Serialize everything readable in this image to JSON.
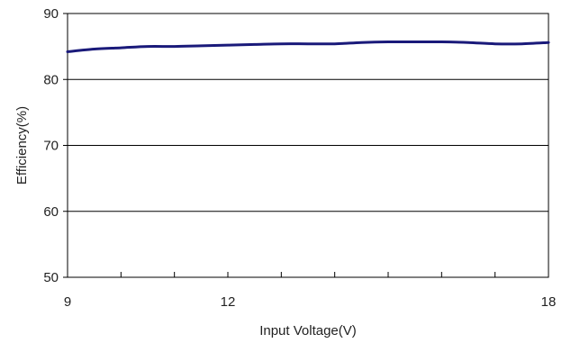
{
  "chart_data": {
    "type": "line",
    "xlabel": "Input Voltage(V)",
    "ylabel": "Efficiency(%)",
    "xlim": [
      9,
      18
    ],
    "ylim": [
      50,
      90
    ],
    "x_ticks": [
      9,
      12,
      18
    ],
    "x_ticks_labeled": [
      "9",
      "12",
      "18"
    ],
    "x_minor_ticks": [
      10,
      11,
      13,
      14,
      15,
      16,
      17
    ],
    "y_ticks": [
      50,
      60,
      70,
      80,
      90
    ],
    "y_ticks_labeled": [
      "50",
      "60",
      "70",
      "80",
      "90"
    ],
    "grid": "horizontal",
    "series": [
      {
        "color": "#1a1a7a",
        "x": [
          9,
          9.5,
          10,
          10.5,
          11,
          11.5,
          12,
          12.5,
          13,
          13.5,
          14,
          14.5,
          15,
          15.5,
          16,
          16.5,
          17,
          17.5,
          18
        ],
        "y": [
          84.2,
          84.6,
          84.8,
          85.0,
          85.0,
          85.1,
          85.2,
          85.3,
          85.4,
          85.4,
          85.4,
          85.6,
          85.7,
          85.7,
          85.7,
          85.6,
          85.4,
          85.4,
          85.6
        ]
      }
    ]
  }
}
